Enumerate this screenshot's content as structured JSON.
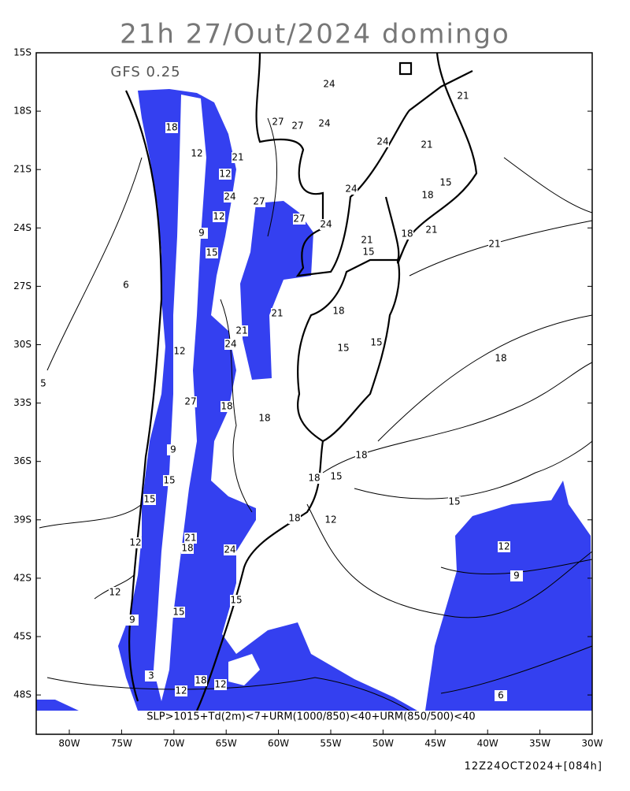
{
  "header": {
    "title": "21h 27/Out/2024 domingo",
    "model": "GFS 0.25"
  },
  "map": {
    "lat_labels": [
      "15S",
      "18S",
      "21S",
      "24S",
      "27S",
      "30S",
      "33S",
      "36S",
      "39S",
      "42S",
      "45S",
      "48S"
    ],
    "lon_labels": [
      "80W",
      "75W",
      "70W",
      "65W",
      "60W",
      "55W",
      "50W",
      "45W",
      "40W",
      "35W",
      "30W"
    ],
    "contour_labels": [
      "24",
      "21",
      "27",
      "27",
      "24",
      "24",
      "21",
      "15",
      "24",
      "18",
      "21",
      "21",
      "15",
      "18",
      "21",
      "24",
      "27",
      "27",
      "24",
      "21",
      "21",
      "18",
      "15",
      "18",
      "15",
      "15",
      "18",
      "18",
      "18",
      "18",
      "15",
      "12",
      "12",
      "9",
      "6",
      "15",
      "18",
      "12",
      "12",
      "12",
      "9",
      "15",
      "6",
      "21",
      "24",
      "27",
      "15",
      "12",
      "18",
      "9",
      "5",
      "12",
      "12",
      "12",
      "12",
      "18",
      "15",
      "18",
      "21",
      "24",
      "15",
      "9",
      "3"
    ],
    "legend": "SLP>1015+Td(2m)<7+URM(1000/850)<40+URM(850/500)<40"
  },
  "footer": {
    "timestamp": "12Z24OCT2024+[084h]"
  }
}
